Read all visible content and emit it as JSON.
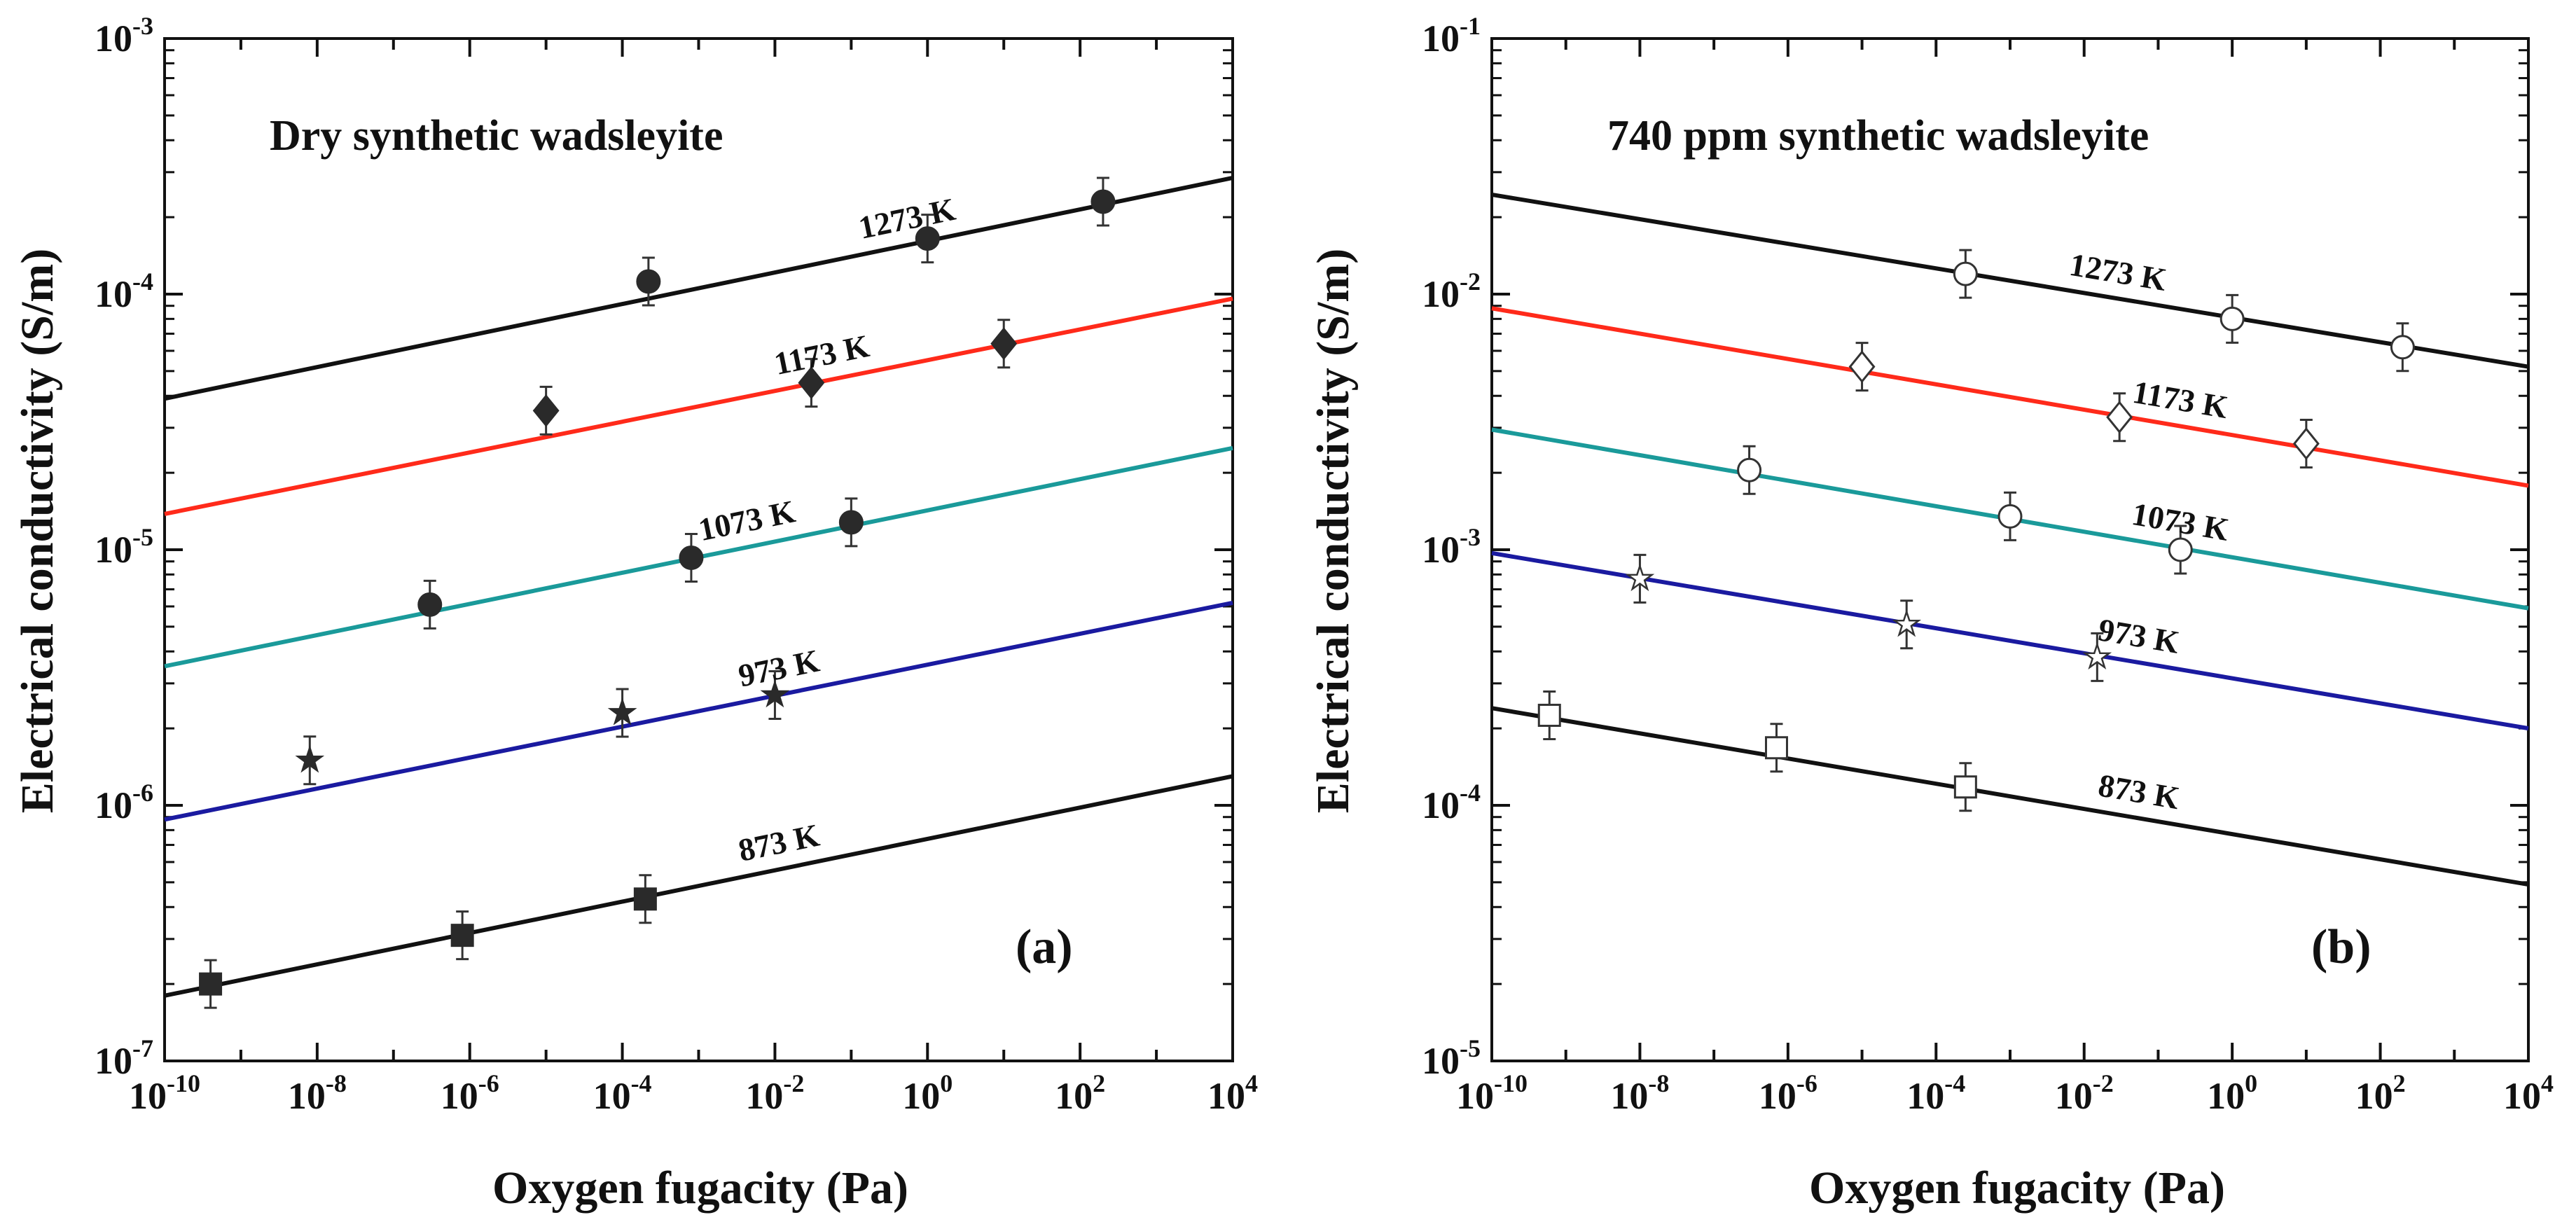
{
  "chart_data": [
    {
      "type": "scatter",
      "panel_label": "(a)",
      "title": "Dry synthetic wadsleyite",
      "xlabel": "Oxygen fugacity (Pa)",
      "ylabel": "Electrical conductivity (S/m)",
      "xscale": "log",
      "yscale": "log",
      "xlim": [
        1e-10,
        10000.0
      ],
      "ylim": [
        1e-07,
        0.001
      ],
      "x_ticks": [
        {
          "base": "10",
          "exp": "-10"
        },
        {
          "base": "10",
          "exp": "-8"
        },
        {
          "base": "10",
          "exp": "-6"
        },
        {
          "base": "10",
          "exp": "-4"
        },
        {
          "base": "10",
          "exp": "-2"
        },
        {
          "base": "10",
          "exp": "0"
        },
        {
          "base": "10",
          "exp": "2"
        },
        {
          "base": "10",
          "exp": "4"
        }
      ],
      "y_ticks": [
        {
          "base": "10",
          "exp": "-7"
        },
        {
          "base": "10",
          "exp": "-6"
        },
        {
          "base": "10",
          "exp": "-5"
        },
        {
          "base": "10",
          "exp": "-4"
        },
        {
          "base": "10",
          "exp": "-3"
        }
      ],
      "grid": false,
      "series": [
        {
          "name": "1273 K",
          "color": "#111111",
          "marker": "circle",
          "filled": true,
          "fit": {
            "x": [
              1e-10,
              10000.0
            ],
            "y": [
              3.9e-05,
              0.000285
            ]
          },
          "points": [
            {
              "x": 0.00022,
              "y": 0.000112
            },
            {
              "x": 1,
              "y": 0.000165
            },
            {
              "x": 200,
              "y": 0.00023
            }
          ]
        },
        {
          "name": "1173 K",
          "color": "#ff2a1a",
          "marker": "diamond",
          "filled": true,
          "fit": {
            "x": [
              1e-10,
              10000.0
            ],
            "y": [
              1.38e-05,
              9.6e-05
            ]
          },
          "points": [
            {
              "x": 1e-05,
              "y": 3.5e-05
            },
            {
              "x": 0.03,
              "y": 4.5e-05
            },
            {
              "x": 10,
              "y": 6.4e-05
            }
          ]
        },
        {
          "name": "1073 K",
          "color": "#1a9a9a",
          "marker": "circle",
          "filled": true,
          "fit": {
            "x": [
              1e-10,
              10000.0
            ],
            "y": [
              3.5e-06,
              2.5e-05
            ]
          },
          "points": [
            {
              "x": 3e-07,
              "y": 6.1e-06
            },
            {
              "x": 0.0008,
              "y": 9.3e-06
            },
            {
              "x": 0.1,
              "y": 1.28e-05
            }
          ]
        },
        {
          "name": "973 K",
          "color": "#1a1aa0",
          "marker": "star",
          "filled": true,
          "fit": {
            "x": [
              1e-10,
              10000.0
            ],
            "y": [
              8.8e-07,
              6.2e-06
            ]
          },
          "points": [
            {
              "x": 8e-09,
              "y": 1.5e-06
            },
            {
              "x": 0.0001,
              "y": 2.3e-06
            },
            {
              "x": 0.01,
              "y": 2.7e-06
            }
          ]
        },
        {
          "name": "873 K",
          "color": "#111111",
          "marker": "square",
          "filled": true,
          "fit": {
            "x": [
              1e-10,
              10000.0
            ],
            "y": [
              1.8e-07,
              1.3e-06
            ]
          },
          "points": [
            {
              "x": 4e-10,
              "y": 2e-07
            },
            {
              "x": 8e-07,
              "y": 3.1e-07
            },
            {
              "x": 0.0002,
              "y": 4.3e-07
            }
          ]
        }
      ]
    },
    {
      "type": "scatter",
      "panel_label": "(b)",
      "title": "740 ppm synthetic wadsleyite",
      "xlabel": "Oxygen fugacity (Pa)",
      "ylabel": "Electrical conductivity (S/m)",
      "xscale": "log",
      "yscale": "log",
      "xlim": [
        1e-10,
        10000.0
      ],
      "ylim": [
        1e-05,
        0.1
      ],
      "x_ticks": [
        {
          "base": "10",
          "exp": "-10"
        },
        {
          "base": "10",
          "exp": "-8"
        },
        {
          "base": "10",
          "exp": "-6"
        },
        {
          "base": "10",
          "exp": "-4"
        },
        {
          "base": "10",
          "exp": "-2"
        },
        {
          "base": "10",
          "exp": "0"
        },
        {
          "base": "10",
          "exp": "2"
        },
        {
          "base": "10",
          "exp": "4"
        }
      ],
      "y_ticks": [
        {
          "base": "10",
          "exp": "-5"
        },
        {
          "base": "10",
          "exp": "-4"
        },
        {
          "base": "10",
          "exp": "-3"
        },
        {
          "base": "10",
          "exp": "-2"
        },
        {
          "base": "10",
          "exp": "-1"
        }
      ],
      "grid": false,
      "series": [
        {
          "name": "1273 K",
          "color": "#111111",
          "marker": "circle",
          "filled": false,
          "fit": {
            "x": [
              1e-10,
              10000.0
            ],
            "y": [
              0.0245,
              0.0052
            ]
          },
          "points": [
            {
              "x": 0.00025,
              "y": 0.012
            },
            {
              "x": 1,
              "y": 0.008
            },
            {
              "x": 200,
              "y": 0.0062
            }
          ]
        },
        {
          "name": "1173 K",
          "color": "#ff2a1a",
          "marker": "diamond",
          "filled": false,
          "fit": {
            "x": [
              1e-10,
              10000.0
            ],
            "y": [
              0.0088,
              0.00178
            ]
          },
          "points": [
            {
              "x": 1e-05,
              "y": 0.0052
            },
            {
              "x": 0.03,
              "y": 0.0033
            },
            {
              "x": 10,
              "y": 0.0026
            }
          ]
        },
        {
          "name": "1073 K",
          "color": "#1a9a9a",
          "marker": "circle",
          "filled": false,
          "fit": {
            "x": [
              1e-10,
              10000.0
            ],
            "y": [
              0.00295,
              0.00059
            ]
          },
          "points": [
            {
              "x": 3e-07,
              "y": 0.00205
            },
            {
              "x": 0.001,
              "y": 0.00135
            },
            {
              "x": 0.2,
              "y": 0.001
            }
          ]
        },
        {
          "name": "973 K",
          "color": "#1a1aa0",
          "marker": "star",
          "filled": false,
          "fit": {
            "x": [
              1e-10,
              10000.0
            ],
            "y": [
              0.00097,
              0.0002
            ]
          },
          "points": [
            {
              "x": 1e-08,
              "y": 0.00077
            },
            {
              "x": 4e-05,
              "y": 0.00051
            },
            {
              "x": 0.015,
              "y": 0.00038
            }
          ]
        },
        {
          "name": "873 K",
          "color": "#111111",
          "marker": "square",
          "filled": false,
          "fit": {
            "x": [
              1e-10,
              10000.0
            ],
            "y": [
              0.00024,
              4.9e-05
            ]
          },
          "points": [
            {
              "x": 6e-10,
              "y": 0.000225
            },
            {
              "x": 7e-07,
              "y": 0.000168
            },
            {
              "x": 0.00025,
              "y": 0.000118
            }
          ]
        }
      ]
    }
  ]
}
